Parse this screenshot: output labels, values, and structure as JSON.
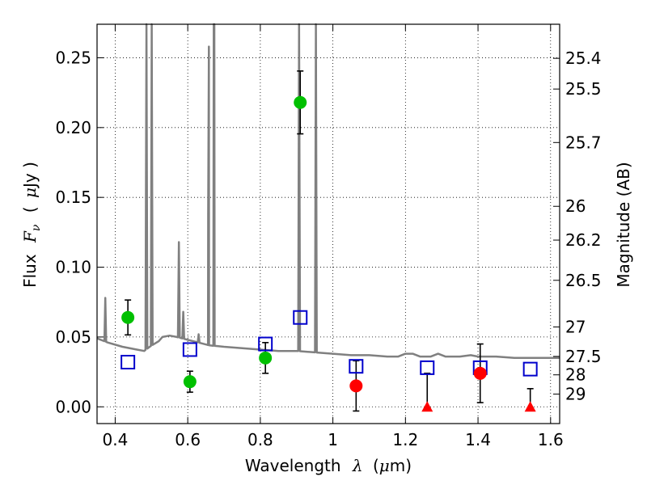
{
  "chart_data": {
    "type": "scatter",
    "xlabel": {
      "text": "Wavelength",
      "symbol": "λ",
      "unit_open": "(",
      "unit_mu": "μ",
      "unit_rest": "m)"
    },
    "ylabel": {
      "text": "Flux",
      "symbol": "F",
      "sub": "ν",
      "unit_open": "(",
      "unit_mu": "μ",
      "unit_rest": "Jy )"
    },
    "y2label": "Magnitude (AB)",
    "xlim": [
      0.35,
      1.625
    ],
    "ylim": [
      -0.012,
      0.274
    ],
    "xticks": [
      0.4,
      0.6,
      0.8,
      1.0,
      1.2,
      1.4,
      1.6
    ],
    "xtick_labels": [
      "0.4",
      "0.6",
      "0.8",
      "1",
      "1.2",
      "1.4",
      "1.6"
    ],
    "yticks": [
      0.0,
      0.05,
      0.1,
      0.15,
      0.2,
      0.25
    ],
    "ytick_labels": [
      "0.00",
      "0.05",
      "0.10",
      "0.15",
      "0.20",
      "0.25"
    ],
    "right_ticks": [
      {
        "label": "25.4",
        "flux": 0.2496
      },
      {
        "label": "25.5",
        "flux": 0.2276
      },
      {
        "label": "25.7",
        "flux": 0.1893
      },
      {
        "label": "26",
        "flux": 0.1436
      },
      {
        "label": "26.2",
        "flux": 0.1194
      },
      {
        "label": "26.5",
        "flux": 0.0906
      },
      {
        "label": "27",
        "flux": 0.0572
      },
      {
        "label": "27.5",
        "flux": 0.0361
      },
      {
        "label": "28",
        "flux": 0.0229
      },
      {
        "label": "29",
        "flux": 0.0091
      }
    ],
    "grid": true,
    "detections_green": [
      {
        "x": 0.435,
        "y": 0.064,
        "err": 0.0125
      },
      {
        "x": 0.606,
        "y": 0.018,
        "err": 0.0075
      },
      {
        "x": 0.814,
        "y": 0.035,
        "err": 0.011
      },
      {
        "x": 0.91,
        "y": 0.218,
        "err": 0.0225
      }
    ],
    "detections_red": [
      {
        "x": 1.064,
        "y": 0.015,
        "err": 0.018
      },
      {
        "x": 1.406,
        "y": 0.024,
        "err": 0.021
      }
    ],
    "upper_limits": [
      {
        "x": 1.26,
        "y": 0.0,
        "err_up": 0.024
      },
      {
        "x": 1.544,
        "y": 0.0,
        "err_up": 0.013
      }
    ],
    "model_points": [
      {
        "x": 0.435,
        "y": 0.032
      },
      {
        "x": 0.606,
        "y": 0.041
      },
      {
        "x": 0.814,
        "y": 0.045
      },
      {
        "x": 0.91,
        "y": 0.064
      },
      {
        "x": 1.064,
        "y": 0.029
      },
      {
        "x": 1.26,
        "y": 0.028
      },
      {
        "x": 1.406,
        "y": 0.028
      },
      {
        "x": 1.544,
        "y": 0.027
      }
    ],
    "sed_continuum": [
      [
        0.35,
        0.049
      ],
      [
        0.38,
        0.046
      ],
      [
        0.42,
        0.043
      ],
      [
        0.46,
        0.041
      ],
      [
        0.48,
        0.04
      ],
      [
        0.495,
        0.043
      ],
      [
        0.52,
        0.047
      ],
      [
        0.53,
        0.05
      ],
      [
        0.55,
        0.051
      ],
      [
        0.57,
        0.05
      ],
      [
        0.6,
        0.048
      ],
      [
        0.63,
        0.046
      ],
      [
        0.66,
        0.044
      ],
      [
        0.7,
        0.043
      ],
      [
        0.75,
        0.042
      ],
      [
        0.8,
        0.041
      ],
      [
        0.85,
        0.04
      ],
      [
        0.9,
        0.04
      ],
      [
        0.95,
        0.039
      ],
      [
        1.0,
        0.038
      ],
      [
        1.05,
        0.037
      ],
      [
        1.1,
        0.037
      ],
      [
        1.15,
        0.036
      ],
      [
        1.18,
        0.036
      ],
      [
        1.2,
        0.038
      ],
      [
        1.22,
        0.038
      ],
      [
        1.24,
        0.036
      ],
      [
        1.27,
        0.036
      ],
      [
        1.29,
        0.038
      ],
      [
        1.31,
        0.036
      ],
      [
        1.35,
        0.036
      ],
      [
        1.38,
        0.037
      ],
      [
        1.4,
        0.036
      ],
      [
        1.45,
        0.036
      ],
      [
        1.5,
        0.035
      ],
      [
        1.55,
        0.035
      ],
      [
        1.625,
        0.035
      ]
    ],
    "sed_lines": [
      {
        "x": 0.3727,
        "peak": 0.078
      },
      {
        "x": 0.4861,
        "peak": 0.35
      },
      {
        "x": 0.5007,
        "peak": 0.35
      },
      {
        "x": 0.5755,
        "peak": 0.118
      },
      {
        "x": 0.5876,
        "peak": 0.068
      },
      {
        "x": 0.63,
        "peak": 0.052
      },
      {
        "x": 0.6563,
        "peak": 0.138
      },
      {
        "x": 0.6583,
        "peak": 0.258
      },
      {
        "x": 0.6716,
        "peak": 0.35
      },
      {
        "x": 0.6731,
        "peak": 0.35
      },
      {
        "x": 0.9069,
        "peak": 0.35
      },
      {
        "x": 0.9532,
        "peak": 0.35
      }
    ],
    "colors": {
      "green": "#00c000",
      "red": "#ff0000",
      "blue": "#0000cc",
      "sed": "#808080",
      "grid": "#000000"
    }
  }
}
